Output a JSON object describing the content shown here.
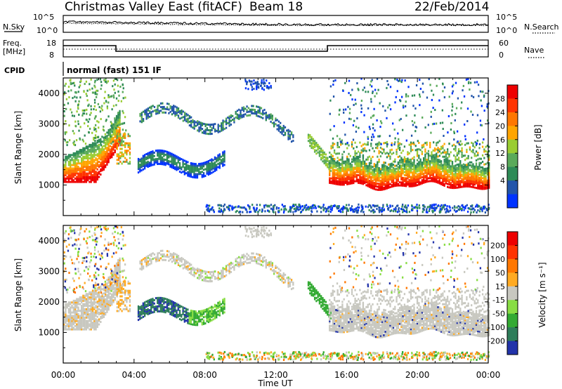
{
  "header": {
    "title": "Christmas Valley East (fitACF)",
    "beam": "Beam 18",
    "date": "22/Feb/2014"
  },
  "panels": {
    "noise": {
      "left_label": "N.Sky",
      "right_label": "N.Search",
      "left_ticks": [
        "10^5",
        "10^0"
      ],
      "right_ticks": [
        "10^5",
        "10^0"
      ]
    },
    "freq": {
      "left_label_1": "Freq.",
      "left_label_2": "[MHz]",
      "right_label": "Nave",
      "left_ticks": [
        "18",
        "8"
      ],
      "right_ticks": [
        "60",
        "0"
      ]
    },
    "cpid": {
      "label": "CPID",
      "value": "normal (fast) 151 IF"
    }
  },
  "chart_data": [
    {
      "type": "heatmap",
      "title": "Power",
      "ylabel": "Slant Range [km]",
      "xlabel": "",
      "y_ticks": [
        "1000",
        "2000",
        "3000",
        "4000"
      ],
      "ylim": [
        0,
        4500
      ],
      "xlim": [
        0,
        24
      ],
      "colorbar": {
        "label": "Power [dB]",
        "ticks": [
          "28",
          "24",
          "20",
          "16",
          "12",
          "8",
          "4"
        ]
      },
      "features": [
        {
          "hours": [
            0,
            3
          ],
          "range_km": [
            1100,
            3300
          ],
          "level": "high"
        },
        {
          "hours": [
            15,
            24
          ],
          "range_km": [
            950,
            2300
          ],
          "level": "high"
        },
        {
          "hours": [
            4,
            9
          ],
          "range_km": [
            1200,
            2100
          ],
          "level": "low"
        },
        {
          "hours": [
            4,
            13
          ],
          "range_km": [
            2500,
            3800
          ],
          "level": "low"
        }
      ]
    },
    {
      "type": "heatmap",
      "title": "Velocity",
      "ylabel": "Slant Range [km]",
      "xlabel": "Time UT",
      "x_ticks": [
        "00:00",
        "04:00",
        "08:00",
        "12:00",
        "16:00",
        "20:00",
        "00:00"
      ],
      "y_ticks": [
        "1000",
        "2000",
        "3000",
        "4000"
      ],
      "ylim": [
        0,
        4500
      ],
      "xlim": [
        0,
        24
      ],
      "colorbar": {
        "label": "Velocity [m s⁻¹]",
        "ticks": [
          "200",
          "100",
          "50",
          "15",
          "-15",
          "-50",
          "-100",
          "-200"
        ]
      }
    }
  ],
  "colors": {
    "power_scale": [
      "#0033ff",
      "#2255aa",
      "#2e8b57",
      "#5aaa5a",
      "#9acd32",
      "#ffa500",
      "#ff7700",
      "#ff3300",
      "#ee0000"
    ],
    "velocity_scale": [
      "#2233aa",
      "#2e7d5a",
      "#33aa33",
      "#88dd44",
      "#c8c8c0",
      "#ffaa22",
      "#ff7700",
      "#ff3300",
      "#ee0000"
    ]
  }
}
